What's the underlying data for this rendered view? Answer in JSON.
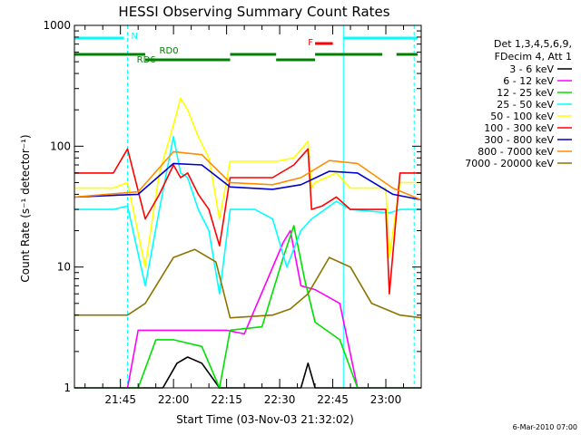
{
  "chart_data": {
    "type": "line",
    "title": "HESSI Observing Summary Count Rates",
    "xlabel": "Start Time (03-Nov-03 21:32:02)",
    "ylabel": "Count Rate (s⁻¹ detector⁻¹)",
    "y_scale": "log",
    "ylim": [
      1,
      1000
    ],
    "xlim": [
      "21:32",
      "23:10"
    ],
    "x_ticks": [
      "21:45",
      "22:00",
      "22:15",
      "22:30",
      "22:45",
      "23:00"
    ],
    "y_ticks": [
      "1",
      "10",
      "100",
      "1000"
    ],
    "legend_position": "top-right",
    "legend_header": [
      "Det 1,3,4,5,6,9,",
      "FDecim 4, Att 1"
    ],
    "series": [
      {
        "name": "3 - 6 keV",
        "color": "#000000",
        "x": [
          "21:32",
          "21:57",
          "22:01",
          "22:04",
          "22:08",
          "22:13",
          "22:36",
          "22:38",
          "22:40",
          "23:04",
          "23:10"
        ],
        "y": [
          1,
          1,
          1.6,
          1.8,
          1.6,
          1,
          1,
          1.6,
          1,
          1,
          1
        ]
      },
      {
        "name": "6 - 12 keV",
        "color": "#ff00ff",
        "x": [
          "21:32",
          "21:47",
          "21:50",
          "21:55",
          "22:00",
          "22:15",
          "22:20",
          "22:31",
          "22:33",
          "22:36",
          "22:40",
          "22:47",
          "22:52",
          "23:10"
        ],
        "y": [
          1,
          1,
          3,
          3,
          3,
          3,
          2.8,
          16,
          20,
          7,
          6.5,
          5,
          1,
          1
        ]
      },
      {
        "name": "12 - 25 keV",
        "color": "#00e000",
        "x": [
          "21:32",
          "21:50",
          "21:55",
          "22:00",
          "22:08",
          "22:13",
          "22:16",
          "22:25",
          "22:31",
          "22:34",
          "22:37",
          "22:40",
          "22:47",
          "22:52",
          "23:10"
        ],
        "y": [
          1,
          1,
          2.5,
          2.5,
          2.2,
          1,
          3,
          3.2,
          12,
          22,
          8,
          3.5,
          2.5,
          1,
          1
        ]
      },
      {
        "name": "25 - 50 keV",
        "color": "#00ffff",
        "x": [
          "21:32",
          "21:43",
          "21:47",
          "21:52",
          "21:56",
          "21:58",
          "22:00",
          "22:02",
          "22:04",
          "22:07",
          "22:10",
          "22:13",
          "22:16",
          "22:23",
          "22:28",
          "22:32",
          "22:36",
          "22:39",
          "22:46",
          "22:50",
          "23:01",
          "23:04",
          "23:10"
        ],
        "y": [
          30,
          30,
          32,
          7,
          30,
          60,
          120,
          60,
          55,
          30,
          20,
          6,
          30,
          30,
          25,
          10,
          20,
          25,
          35,
          30,
          28,
          30,
          30
        ]
      },
      {
        "name": "50 - 100 keV",
        "color": "#ffff00",
        "x": [
          "21:32",
          "21:43",
          "21:47",
          "21:52",
          "21:56",
          "22:00",
          "22:02",
          "22:04",
          "22:07",
          "22:10",
          "22:13",
          "22:16",
          "22:29",
          "22:34",
          "22:38",
          "22:39",
          "22:40",
          "22:46",
          "22:50",
          "23:00",
          "23:01",
          "23:04",
          "23:10"
        ],
        "y": [
          45,
          45,
          50,
          10,
          60,
          150,
          250,
          200,
          120,
          80,
          25,
          75,
          75,
          80,
          110,
          45,
          50,
          60,
          45,
          45,
          12,
          50,
          50
        ]
      },
      {
        "name": "100 - 300 keV",
        "color": "#ff0000",
        "x": [
          "21:32",
          "21:43",
          "21:47",
          "21:52",
          "21:56",
          "22:00",
          "22:02",
          "22:04",
          "22:07",
          "22:10",
          "22:13",
          "22:16",
          "22:28",
          "22:34",
          "22:38",
          "22:39",
          "22:42",
          "22:46",
          "22:50",
          "23:00",
          "23:01",
          "23:04",
          "23:10"
        ],
        "y": [
          60,
          60,
          95,
          25,
          40,
          70,
          55,
          60,
          40,
          30,
          15,
          55,
          55,
          70,
          95,
          30,
          32,
          38,
          30,
          30,
          6,
          60,
          60
        ]
      },
      {
        "name": "300 - 800 keV",
        "color": "#0000cc",
        "x": [
          "21:32",
          "21:50",
          "22:00",
          "22:08",
          "22:16",
          "22:28",
          "22:36",
          "22:44",
          "22:52",
          "23:02",
          "23:10"
        ],
        "y": [
          38,
          40,
          72,
          70,
          46,
          44,
          48,
          62,
          60,
          40,
          36
        ]
      },
      {
        "name": "800 - 7000 keV",
        "color": "#ff8c00",
        "x": [
          "21:32",
          "21:50",
          "22:00",
          "22:08",
          "22:16",
          "22:28",
          "22:36",
          "22:44",
          "22:52",
          "23:02",
          "23:10"
        ],
        "y": [
          38,
          42,
          90,
          85,
          50,
          48,
          55,
          76,
          72,
          45,
          36
        ]
      },
      {
        "name": "7000 - 20000 keV",
        "color": "#8b7500",
        "x": [
          "21:32",
          "21:47",
          "21:52",
          "22:00",
          "22:06",
          "22:12",
          "22:16",
          "22:28",
          "22:33",
          "22:38",
          "22:44",
          "22:50",
          "22:56",
          "23:04",
          "23:10"
        ],
        "y": [
          4,
          4,
          5,
          12,
          14,
          11,
          3.8,
          4,
          4.5,
          6,
          12,
          10,
          5,
          4,
          3.8
        ]
      }
    ],
    "annotations": [
      {
        "label": "N",
        "color": "#00ffff"
      },
      {
        "label": "RD0",
        "color": "#008000"
      },
      {
        "label": "RD6",
        "color": "#008000"
      },
      {
        "label": "F",
        "color": "#ff0000"
      }
    ]
  },
  "footer_date": "6-Mar-2010 07:00"
}
